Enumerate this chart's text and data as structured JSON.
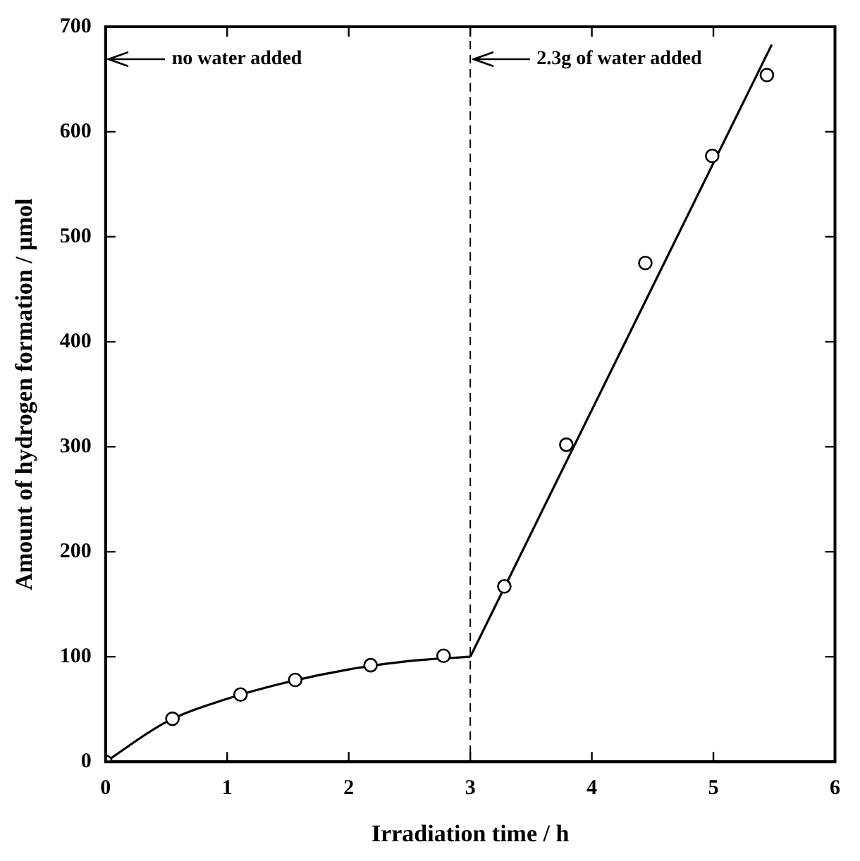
{
  "chart_data": {
    "type": "scatter",
    "xlabel": "Irradiation time / h",
    "ylabel": "Amount of hydrogen formation / µmol",
    "xlim": [
      0,
      6
    ],
    "xticks": [
      0,
      1,
      2,
      3,
      4,
      5,
      6
    ],
    "ylim": [
      0,
      700
    ],
    "yticks": [
      0,
      100,
      200,
      300,
      400,
      500,
      600,
      700
    ],
    "grid": false,
    "legend": false,
    "marker": "circle",
    "series": [
      {
        "color": "#000000",
        "x": [
          0,
          0.55,
          1.11,
          1.56,
          2.18,
          2.78,
          3.28,
          3.79,
          4.44,
          4.99,
          5.44
        ],
        "values": [
          0,
          41,
          64,
          78,
          92,
          101,
          167,
          302,
          475,
          577,
          654
        ]
      },
      {
        "type": "line",
        "color": "#000000",
        "marker": "none",
        "line_style": "solid",
        "x": [
          0,
          0.5,
          1,
          1.5,
          2,
          2.5,
          3
        ],
        "values": [
          0,
          38,
          60,
          76,
          88,
          96,
          100
        ]
      },
      {
        "type": "line",
        "color": "#000000",
        "marker": "none",
        "line_style": "solid",
        "x": [
          3,
          5.48
        ],
        "values": [
          100,
          683
        ]
      }
    ],
    "ref_lines": [
      {
        "axis": "x",
        "value": 3,
        "line_style": "dashed",
        "color": "#000000"
      }
    ],
    "annotations": [
      "no water added",
      "2.3g of water added"
    ]
  }
}
